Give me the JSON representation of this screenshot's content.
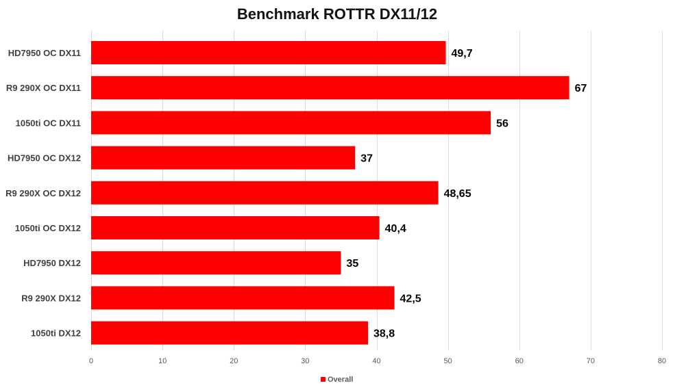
{
  "chart_data": {
    "type": "bar",
    "orientation": "horizontal",
    "title": "Benchmark ROTTR DX11/12",
    "categories": [
      "HD7950 OC DX11",
      "R9 290X OC DX11",
      "1050ti OC DX11",
      "HD7950 OC DX12",
      "R9 290X OC DX12",
      "1050ti OC DX12",
      "HD7950 DX12",
      "R9 290X DX12",
      "1050ti DX12"
    ],
    "series": [
      {
        "name": "Overall",
        "color": "#ff0000",
        "values": [
          49.7,
          67,
          56,
          37,
          48.65,
          40.4,
          35,
          42.5,
          38.8
        ],
        "labels": [
          "49,7",
          "67",
          "56",
          "37",
          "48,65",
          "40,4",
          "35",
          "42,5",
          "38,8"
        ]
      }
    ],
    "xlim": [
      0,
      80
    ],
    "xticks": [
      0,
      10,
      20,
      30,
      40,
      50,
      60,
      70,
      80
    ],
    "grid": true,
    "legend_position": "bottom"
  }
}
